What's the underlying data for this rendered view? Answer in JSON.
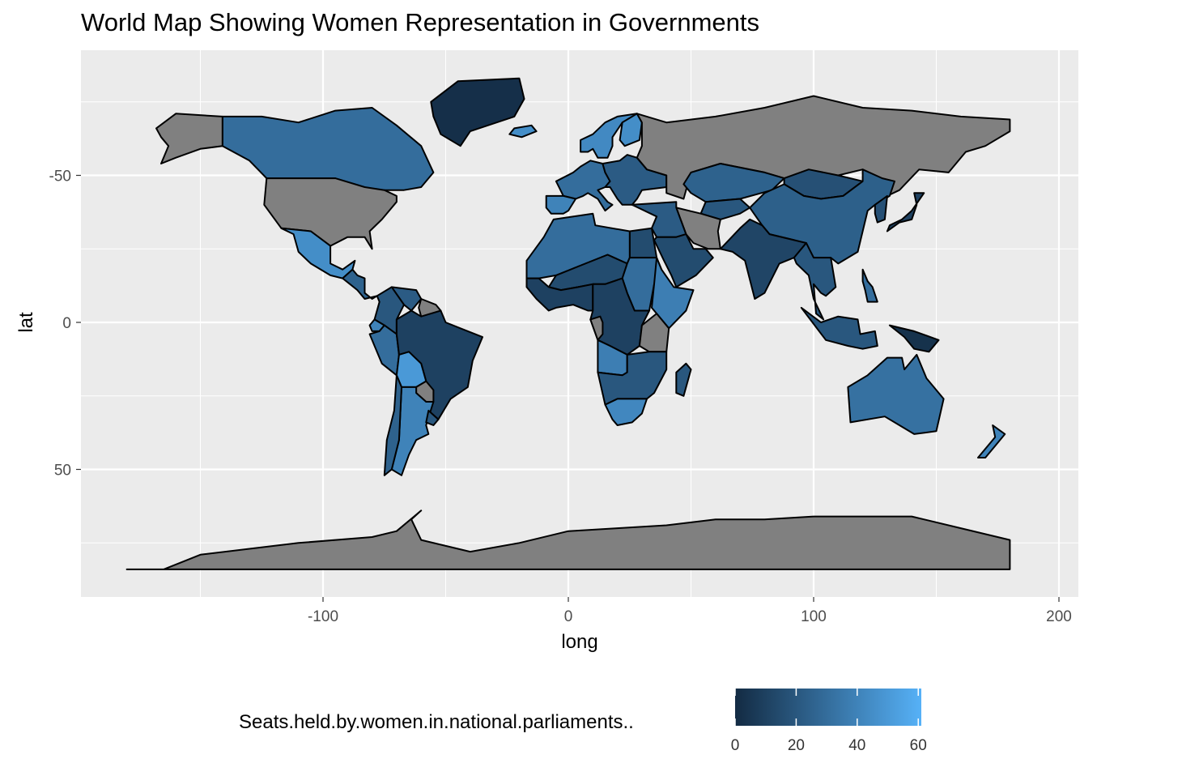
{
  "title": "World Map Showing Women Representation in Governments",
  "axes": {
    "x": {
      "label": "long",
      "ticks": [
        "-100",
        "0",
        "100",
        "200"
      ]
    },
    "y": {
      "label": "lat",
      "ticks": [
        "50",
        "0",
        "-50"
      ]
    }
  },
  "legend": {
    "title": "Seats.held.by.women.in.national.parliaments..",
    "ticks": [
      "0",
      "20",
      "40",
      "60"
    ],
    "color_low": "#132B43",
    "color_high": "#56B1F7"
  },
  "colors": {
    "panel": "#ebebeb",
    "grid": "#ffffff",
    "na_fill": "#808080",
    "border": "#000000"
  },
  "chart_data": {
    "type": "map",
    "title": "World Map Showing Women Representation in Governments",
    "xlabel": "long",
    "ylabel": "lat",
    "xlim": [
      -200,
      210
    ],
    "ylim": [
      -92,
      92
    ],
    "x_ticks": [
      -100,
      0,
      100,
      200
    ],
    "y_ticks": [
      -50,
      0,
      50
    ],
    "grid": true,
    "legend_position": "bottom",
    "scale": {
      "min": 0,
      "max": 61,
      "breaks": [
        0,
        20,
        40,
        60
      ]
    },
    "regions": [
      {
        "name": "Greenland",
        "value": 2
      },
      {
        "name": "Canada",
        "value": 30
      },
      {
        "name": "Alaska",
        "value": null
      },
      {
        "name": "United States",
        "value": null
      },
      {
        "name": "Mexico",
        "value": 45
      },
      {
        "name": "Central America",
        "value": 25
      },
      {
        "name": "Venezuela",
        "value": 22
      },
      {
        "name": "Guyana",
        "value": null
      },
      {
        "name": "Colombia",
        "value": 20
      },
      {
        "name": "Ecuador",
        "value": 40
      },
      {
        "name": "Peru",
        "value": 30
      },
      {
        "name": "Brazil",
        "value": 10
      },
      {
        "name": "Bolivia",
        "value": 50
      },
      {
        "name": "Paraguay",
        "value": null
      },
      {
        "name": "Argentina",
        "value": 40
      },
      {
        "name": "Chile",
        "value": 25
      },
      {
        "name": "Uruguay",
        "value": 20
      },
      {
        "name": "Iceland",
        "value": 45
      },
      {
        "name": "Scandinavia",
        "value": 43
      },
      {
        "name": "Finland",
        "value": 45
      },
      {
        "name": "Western Europe",
        "value": 30
      },
      {
        "name": "Iberia",
        "value": 40
      },
      {
        "name": "Eastern Europe",
        "value": 22
      },
      {
        "name": "Russia",
        "value": null
      },
      {
        "name": "Kazakhstan",
        "value": 25
      },
      {
        "name": "Mongolia",
        "value": 17
      },
      {
        "name": "China",
        "value": 24
      },
      {
        "name": "Central Asia",
        "value": 20
      },
      {
        "name": "Iran",
        "value": null
      },
      {
        "name": "Middle East",
        "value": 22
      },
      {
        "name": "Arabia",
        "value": 15
      },
      {
        "name": "Egypt",
        "value": 15
      },
      {
        "name": "North Africa",
        "value": 30
      },
      {
        "name": "Sahel",
        "value": 15
      },
      {
        "name": "West Africa",
        "value": 10
      },
      {
        "name": "Sudan",
        "value": 30
      },
      {
        "name": "Ethiopia",
        "value": 38
      },
      {
        "name": "Central Africa",
        "value": 10
      },
      {
        "name": "Gabon",
        "value": null
      },
      {
        "name": "Tanzania",
        "value": null
      },
      {
        "name": "Angola",
        "value": 38
      },
      {
        "name": "Southern Africa",
        "value": 20
      },
      {
        "name": "South Africa",
        "value": 42
      },
      {
        "name": "Madagascar",
        "value": 20
      },
      {
        "name": "India",
        "value": 12
      },
      {
        "name": "Southeast Asia",
        "value": 20
      },
      {
        "name": "Japan",
        "value": 10
      },
      {
        "name": "Korea",
        "value": 17
      },
      {
        "name": "Philippines",
        "value": 30
      },
      {
        "name": "Indonesia",
        "value": 20
      },
      {
        "name": "Papua New Guinea",
        "value": 3
      },
      {
        "name": "Australia",
        "value": 32
      },
      {
        "name": "New Zealand",
        "value": 40
      },
      {
        "name": "Antarctica",
        "value": null
      }
    ]
  }
}
